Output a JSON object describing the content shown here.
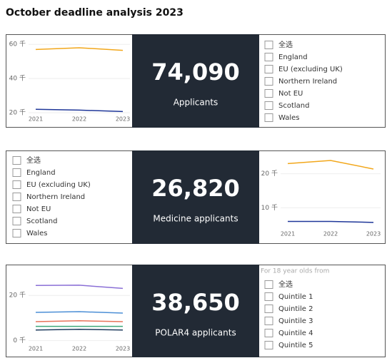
{
  "title": "October deadline analysis 2023",
  "chart_data": [
    {
      "type": "line",
      "categories": [
        "2021",
        "2022",
        "2023"
      ],
      "ylim": [
        15000,
        63000
      ],
      "yticks": [
        {
          "value": 20000,
          "label": "20 千"
        },
        {
          "value": 40000,
          "label": "40 千"
        },
        {
          "value": 60000,
          "label": "60 千"
        }
      ],
      "grid": true,
      "series": [
        {
          "color": "#f2a71b",
          "values": [
            57000,
            58000,
            56500
          ]
        },
        {
          "color": "#1f3799",
          "values": [
            22000,
            21500,
            20700
          ]
        }
      ]
    },
    {
      "type": "line",
      "categories": [
        "2021",
        "2022",
        "2023"
      ],
      "ylim": [
        4000,
        26000
      ],
      "yticks": [
        {
          "value": 10000,
          "label": "10 千"
        },
        {
          "value": 20000,
          "label": "20 千"
        }
      ],
      "grid": true,
      "series": [
        {
          "color": "#f2a71b",
          "values": [
            23000,
            23900,
            21400
          ]
        },
        {
          "color": "#1f3799",
          "values": [
            6000,
            6000,
            5700
          ]
        }
      ]
    },
    {
      "type": "line",
      "categories": [
        "2021",
        "2022",
        "2023"
      ],
      "ylim": [
        -2000,
        27000
      ],
      "yticks": [
        {
          "value": 0,
          "label": "0 千"
        },
        {
          "value": 20000,
          "label": "20 千"
        }
      ],
      "grid": true,
      "series": [
        {
          "color": "#8a6fd6",
          "values": [
            24400,
            24500,
            23100
          ]
        },
        {
          "color": "#4c8fd6",
          "values": [
            12500,
            12800,
            12200
          ]
        },
        {
          "color": "#e8735a",
          "values": [
            8400,
            8800,
            8400
          ]
        },
        {
          "color": "#3ea87a",
          "values": [
            6300,
            6300,
            6300
          ]
        },
        {
          "color": "#1d3a5c",
          "values": [
            4700,
            5000,
            4700
          ]
        }
      ]
    }
  ],
  "cards": [
    {
      "value": "74,090",
      "label": "Applicants"
    },
    {
      "value": "26,820",
      "label": "Medicine applicants"
    },
    {
      "value": "38,650",
      "label": "POLAR4 applicants"
    }
  ],
  "filters": [
    {
      "items": [
        "全选",
        "England",
        "EU (excluding UK)",
        "Northern Ireland",
        "Not EU",
        "Scotland",
        "Wales"
      ]
    },
    {
      "items": [
        "全选",
        "England",
        "EU (excluding UK)",
        "Northern Ireland",
        "Not EU",
        "Scotland",
        "Wales"
      ]
    },
    {
      "heading": "For 18 year olds from",
      "items": [
        "全选",
        "Quintile 1",
        "Quintile 2",
        "Quintile 3",
        "Quintile 4",
        "Quintile 5"
      ]
    }
  ]
}
